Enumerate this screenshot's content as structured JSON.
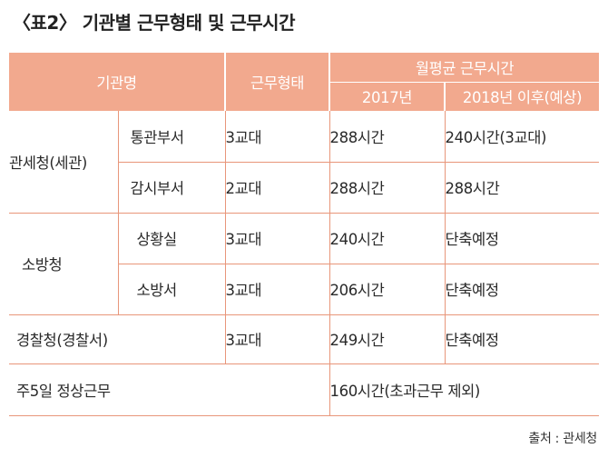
{
  "title": "〈표2〉 기관별 근무형태 및 근무시간",
  "header": {
    "org": "기관명",
    "shift": "근무형태",
    "monthly": "월평균 근무시간",
    "y2017": "2017년",
    "y2018": "2018년 이후(예상)"
  },
  "rows": [
    {
      "org": "관세청(세관)",
      "dept": "통관부서",
      "shift": "3교대",
      "h2017": "288시간",
      "h2018": "240시간(3교대)"
    },
    {
      "org": "",
      "dept": "감시부서",
      "shift": "2교대",
      "h2017": "288시간",
      "h2018": "288시간"
    },
    {
      "org": "소방청",
      "dept": "상황실",
      "shift": "3교대",
      "h2017": "240시간",
      "h2018": "단축예정"
    },
    {
      "org": "",
      "dept": "소방서",
      "shift": "3교대",
      "h2017": "206시간",
      "h2018": "단축예정"
    },
    {
      "org": "경찰청(경찰서)",
      "dept": "",
      "shift": "3교대",
      "h2017": "249시간",
      "h2018": "단축예정"
    }
  ],
  "footer_row": {
    "label": "주5일 정상근무",
    "value": "160시간(초과근무 제외)"
  },
  "source": "출처 : 관세청"
}
